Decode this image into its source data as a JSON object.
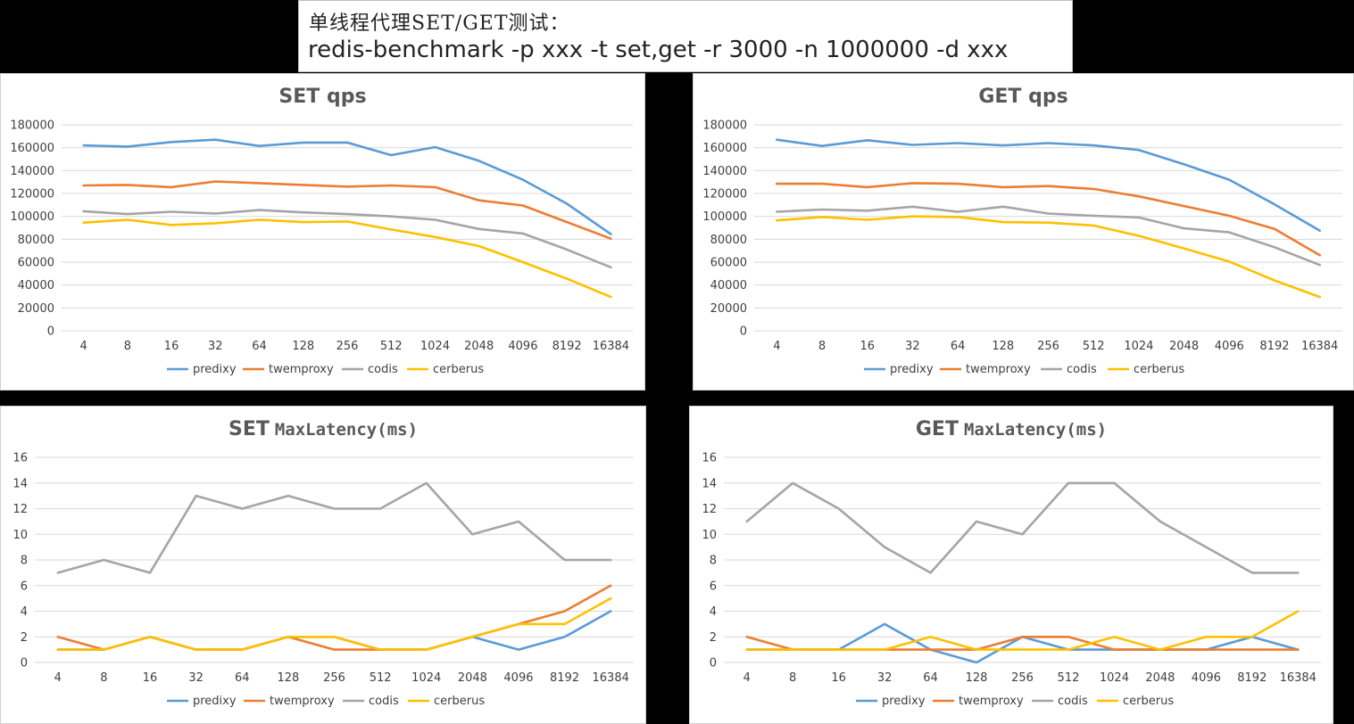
{
  "header": {
    "line1": "单线程代理SET/GET测试：",
    "line2": "redis-benchmark -p xxx -t set,get -r 3000 -n 1000000 -d xxx"
  },
  "chart_data": [
    {
      "id": "set-qps",
      "type": "line",
      "title_main": "SET qps",
      "title_suffix": "",
      "categories": [
        "4",
        "8",
        "16",
        "32",
        "64",
        "128",
        "256",
        "512",
        "1024",
        "2048",
        "4096",
        "8192",
        "16384"
      ],
      "ylim": [
        0,
        180000
      ],
      "yticks": [
        0,
        20000,
        40000,
        60000,
        80000,
        100000,
        120000,
        140000,
        160000,
        180000
      ],
      "grid": true,
      "legend": "bottom",
      "series": [
        {
          "name": "predixy",
          "color": "#5b9bd5",
          "values": [
            162000,
            161000,
            165000,
            167000,
            161500,
            164500,
            164500,
            153500,
            160500,
            148500,
            132000,
            111000,
            84500
          ]
        },
        {
          "name": "twemproxy",
          "color": "#ed7d31",
          "values": [
            127000,
            127500,
            125500,
            130500,
            129000,
            127500,
            126000,
            127000,
            125500,
            114000,
            109500,
            95000,
            80500
          ]
        },
        {
          "name": "codis",
          "color": "#a5a5a5",
          "values": [
            104500,
            102000,
            104000,
            102500,
            105500,
            103500,
            102000,
            100000,
            97000,
            89000,
            85000,
            71000,
            55500
          ]
        },
        {
          "name": "cerberus",
          "color": "#ffc000",
          "values": [
            94500,
            97000,
            92500,
            94000,
            97000,
            95000,
            95500,
            88500,
            82000,
            74000,
            60000,
            45500,
            29500
          ]
        }
      ]
    },
    {
      "id": "get-qps",
      "type": "line",
      "title_main": "GET qps",
      "title_suffix": "",
      "categories": [
        "4",
        "8",
        "16",
        "32",
        "64",
        "128",
        "256",
        "512",
        "1024",
        "2048",
        "4096",
        "8192",
        "16384"
      ],
      "ylim": [
        0,
        180000
      ],
      "yticks": [
        0,
        20000,
        40000,
        60000,
        80000,
        100000,
        120000,
        140000,
        160000,
        180000
      ],
      "grid": true,
      "legend": "bottom",
      "series": [
        {
          "name": "predixy",
          "color": "#5b9bd5",
          "values": [
            167000,
            161500,
            166500,
            162500,
            164000,
            162000,
            164000,
            162000,
            158000,
            145500,
            132000,
            110500,
            87500
          ]
        },
        {
          "name": "twemproxy",
          "color": "#ed7d31",
          "values": [
            128500,
            128500,
            125500,
            129000,
            128500,
            125500,
            126500,
            124000,
            117500,
            109000,
            100500,
            89000,
            66000
          ]
        },
        {
          "name": "codis",
          "color": "#a5a5a5",
          "values": [
            104000,
            106000,
            105000,
            108500,
            104000,
            108500,
            102500,
            100500,
            99000,
            89500,
            86000,
            73000,
            57500
          ]
        },
        {
          "name": "cerberus",
          "color": "#ffc000",
          "values": [
            96500,
            99500,
            97000,
            100000,
            99500,
            95000,
            94500,
            92000,
            83000,
            72000,
            60500,
            44000,
            29500
          ]
        }
      ]
    },
    {
      "id": "set-latency",
      "type": "line",
      "title_main": "SET",
      "title_suffix": "MaxLatency(ms)",
      "categories": [
        "4",
        "8",
        "16",
        "32",
        "64",
        "128",
        "256",
        "512",
        "1024",
        "2048",
        "4096",
        "8192",
        "16384"
      ],
      "ylim": [
        0,
        16
      ],
      "yticks": [
        0,
        2,
        4,
        6,
        8,
        10,
        12,
        14,
        16
      ],
      "grid": true,
      "legend": "bottom",
      "series": [
        {
          "name": "predixy",
          "color": "#5b9bd5",
          "values": [
            1,
            1,
            2,
            1,
            1,
            2,
            2,
            1,
            1,
            2,
            1,
            2,
            4
          ]
        },
        {
          "name": "twemproxy",
          "color": "#ed7d31",
          "values": [
            2,
            1,
            2,
            1,
            1,
            2,
            1,
            1,
            1,
            2,
            3,
            4,
            6
          ]
        },
        {
          "name": "codis",
          "color": "#a5a5a5",
          "values": [
            7,
            8,
            7,
            13,
            12,
            13,
            12,
            12,
            14,
            10,
            11,
            8,
            8
          ]
        },
        {
          "name": "cerberus",
          "color": "#ffc000",
          "values": [
            1,
            1,
            2,
            1,
            1,
            2,
            2,
            1,
            1,
            2,
            3,
            3,
            5
          ]
        }
      ]
    },
    {
      "id": "get-latency",
      "type": "line",
      "title_main": "GET",
      "title_suffix": "MaxLatency(ms)",
      "categories": [
        "4",
        "8",
        "16",
        "32",
        "64",
        "128",
        "256",
        "512",
        "1024",
        "2048",
        "4096",
        "8192",
        "16384"
      ],
      "ylim": [
        0,
        16
      ],
      "yticks": [
        0,
        2,
        4,
        6,
        8,
        10,
        12,
        14,
        16
      ],
      "grid": true,
      "legend": "bottom",
      "series": [
        {
          "name": "predixy",
          "color": "#5b9bd5",
          "values": [
            1,
            1,
            1,
            3,
            1,
            0,
            2,
            1,
            1,
            1,
            1,
            2,
            1
          ]
        },
        {
          "name": "twemproxy",
          "color": "#ed7d31",
          "values": [
            2,
            1,
            1,
            1,
            1,
            1,
            2,
            2,
            1,
            1,
            1,
            1,
            1
          ]
        },
        {
          "name": "codis",
          "color": "#a5a5a5",
          "values": [
            11,
            14,
            12,
            9,
            7,
            11,
            10,
            14,
            14,
            11,
            9,
            7,
            7
          ]
        },
        {
          "name": "cerberus",
          "color": "#ffc000",
          "values": [
            1,
            1,
            1,
            1,
            2,
            1,
            1,
            1,
            2,
            1,
            2,
            2,
            4
          ]
        }
      ]
    }
  ]
}
